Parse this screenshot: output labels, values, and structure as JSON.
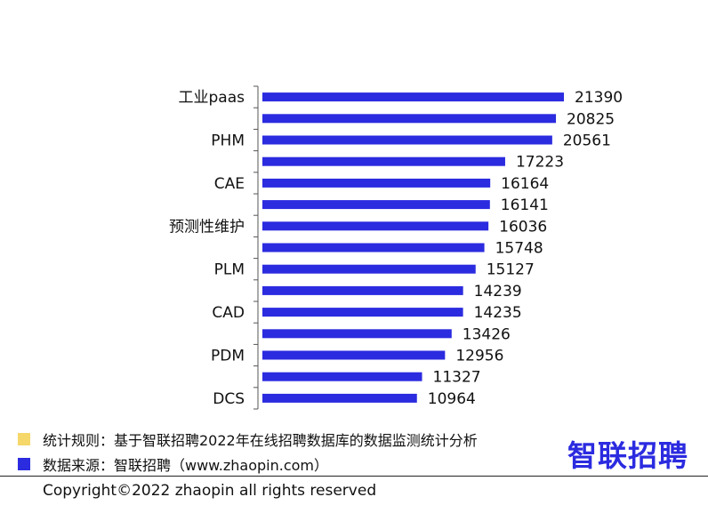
{
  "chart_data": {
    "type": "bar",
    "orientation": "horizontal",
    "categories": [
      "工业paas",
      "",
      "PHM",
      "",
      "CAE",
      "",
      "预测性维护",
      "",
      "PLM",
      "",
      "CAD",
      "",
      "PDM",
      "",
      "DCS"
    ],
    "values": [
      21390,
      20825,
      20561,
      17223,
      16164,
      16141,
      16036,
      15748,
      15127,
      14239,
      14235,
      13426,
      12956,
      11327,
      10964
    ],
    "xlim": [
      0,
      26000
    ],
    "grid": false,
    "legend": "none"
  },
  "colors": {
    "bar": "#2b2be0",
    "note_swatch": "#f5d76a",
    "source_swatch": "#2b2be0",
    "brand": "#2b2be0"
  },
  "footer": {
    "rule_note": "统计规则：基于智联招聘2022年在线招聘数据库的数据监测统计分析",
    "source_note": "数据来源：智联招聘（www.zhaopin.com）",
    "brand": "智联招聘",
    "copyright": "Copyright©2022 zhaopin all rights reserved"
  }
}
